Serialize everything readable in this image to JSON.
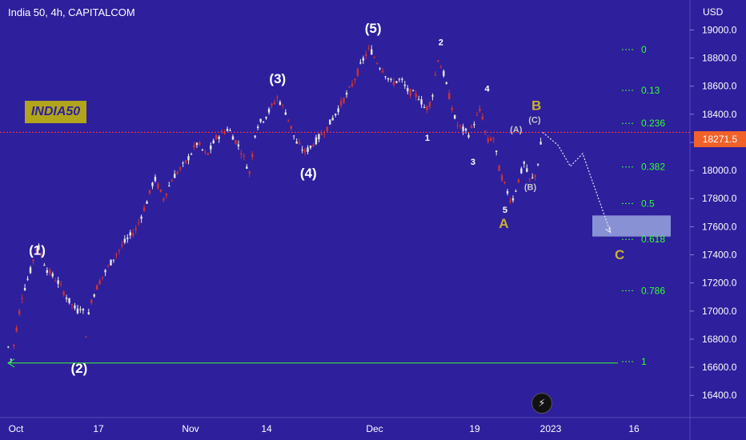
{
  "header": {
    "title": "India 50, 4h, CAPITALCOM",
    "currency": "USD"
  },
  "badge": {
    "label": "INDIA50"
  },
  "current_price": {
    "label": "18271.5",
    "value": 18271.5
  },
  "logo": {
    "icon": "lightning-icon",
    "glyph": "⚡"
  },
  "colors": {
    "background": "#2e1f9c",
    "up": "#e6e6e6",
    "down": "#cc3333",
    "fib": "#33ff33",
    "wave_white": "#ffffff",
    "wave_gold": "#c9b030",
    "wave_grey": "#c8c8c8",
    "price_line": "#ff3b3b",
    "ticker": "#f1612a",
    "target_box": "#a6b8e6"
  },
  "chart_data": {
    "type": "candlestick",
    "title": "India 50, 4h, CAPITALCOM",
    "x_ticks": [
      "Oct",
      "17",
      "Nov",
      "14",
      "Dec",
      "19",
      "2023",
      "16"
    ],
    "y_ticks": [
      19000.0,
      18800.0,
      18600.0,
      18400.0,
      18200.0,
      18000.0,
      17800.0,
      17600.0,
      17400.0,
      17200.0,
      17000.0,
      16800.0,
      16600.0,
      16400.0
    ],
    "y_tick_labels": [
      "19000.0",
      "18800.0",
      "18600.0",
      "18400.0",
      "18200.0",
      "18000.0",
      "17800.0",
      "17600.0",
      "17400.0",
      "17200.0",
      "17000.0",
      "16800.0",
      "16600.0",
      "16400.0"
    ],
    "ylim": [
      16300,
      19200
    ],
    "price_path": [
      [
        0,
        16800
      ],
      [
        0.8,
        16650
      ],
      [
        2.5,
        17100
      ],
      [
        4,
        17300
      ],
      [
        5,
        17480
      ],
      [
        6.5,
        17300
      ],
      [
        8.5,
        17200
      ],
      [
        10,
        17080
      ],
      [
        11.5,
        17000
      ],
      [
        12.3,
        17050
      ],
      [
        13,
        16800
      ],
      [
        13.5,
        17050
      ],
      [
        15,
        17200
      ],
      [
        17,
        17350
      ],
      [
        19,
        17480
      ],
      [
        21,
        17580
      ],
      [
        23,
        17800
      ],
      [
        24,
        17950
      ],
      [
        25.5,
        17800
      ],
      [
        27,
        17950
      ],
      [
        29,
        18050
      ],
      [
        31,
        18200
      ],
      [
        32.5,
        18100
      ],
      [
        34,
        18230
      ],
      [
        36,
        18300
      ],
      [
        38,
        18150
      ],
      [
        39.5,
        17980
      ],
      [
        40.5,
        18310
      ],
      [
        42,
        18380
      ],
      [
        44,
        18520
      ],
      [
        45.5,
        18400
      ],
      [
        47,
        18200
      ],
      [
        48.5,
        18130
      ],
      [
        50,
        18200
      ],
      [
        52,
        18300
      ],
      [
        54,
        18450
      ],
      [
        56,
        18600
      ],
      [
        58,
        18800
      ],
      [
        59,
        18870
      ],
      [
        60,
        18780
      ],
      [
        61,
        18720
      ],
      [
        62.5,
        18620
      ],
      [
        64,
        18650
      ],
      [
        65,
        18570
      ],
      [
        67,
        18520
      ],
      [
        68,
        18430
      ],
      [
        69,
        18500
      ],
      [
        70,
        18800
      ],
      [
        71,
        18680
      ],
      [
        72,
        18500
      ],
      [
        73,
        18330
      ],
      [
        75,
        18260
      ],
      [
        76,
        18350
      ],
      [
        77,
        18440
      ],
      [
        78,
        18200
      ],
      [
        79,
        18240
      ],
      [
        80,
        18000
      ],
      [
        81,
        17880
      ],
      [
        82,
        17770
      ],
      [
        83,
        17920
      ],
      [
        84,
        18050
      ],
      [
        85,
        17920
      ],
      [
        86,
        17980
      ],
      [
        87,
        18271.5
      ]
    ],
    "projection": [
      [
        87,
        18271.5
      ],
      [
        89.5,
        18180
      ],
      [
        91.5,
        18030
      ],
      [
        93.5,
        18120
      ],
      [
        98,
        17560
      ]
    ],
    "fib_levels": [
      {
        "label": "0",
        "price": 18860
      },
      {
        "label": "0.13",
        "price": 18570
      },
      {
        "label": "0.236",
        "price": 18335
      },
      {
        "label": "0.382",
        "price": 18025
      },
      {
        "label": "0.5",
        "price": 17765
      },
      {
        "label": "0.618",
        "price": 17510
      },
      {
        "label": "0.786",
        "price": 17145
      },
      {
        "label": "1",
        "price": 16640
      }
    ],
    "support_line": {
      "price": 16630
    },
    "target_zone": {
      "price_top": 17680,
      "price_bottom": 17530
    },
    "wave_labels": [
      {
        "text": "(1)",
        "color": "white",
        "x": 5,
        "price": 17400,
        "size": "big"
      },
      {
        "text": "(2)",
        "color": "white",
        "x": 11.8,
        "price": 16560,
        "size": "big"
      },
      {
        "text": "(3)",
        "color": "white",
        "x": 44,
        "price": 18620,
        "size": "big"
      },
      {
        "text": "(4)",
        "color": "white",
        "x": 49,
        "price": 17950,
        "size": "big"
      },
      {
        "text": "(5)",
        "color": "white",
        "x": 59.5,
        "price": 18980,
        "size": "big"
      },
      {
        "text": "2",
        "color": "white",
        "x": 70.5,
        "price": 18890,
        "size": "small"
      },
      {
        "text": "4",
        "color": "white",
        "x": 78,
        "price": 18560,
        "size": "small"
      },
      {
        "text": "1",
        "color": "white",
        "x": 68.3,
        "price": 18210,
        "size": "small"
      },
      {
        "text": "3",
        "color": "white",
        "x": 75.7,
        "price": 18040,
        "size": "small"
      },
      {
        "text": "5",
        "color": "white",
        "x": 80.9,
        "price": 17700,
        "size": "small"
      },
      {
        "text": "(A)",
        "color": "grey",
        "x": 82.7,
        "price": 18270,
        "size": "small"
      },
      {
        "text": "(B)",
        "color": "grey",
        "x": 85,
        "price": 17860,
        "size": "small"
      },
      {
        "text": "(C)",
        "color": "grey",
        "x": 85.7,
        "price": 18340,
        "size": "small"
      },
      {
        "text": "A",
        "color": "gold",
        "x": 80.7,
        "price": 17590,
        "size": "big"
      },
      {
        "text": "B",
        "color": "gold",
        "x": 86,
        "price": 18430,
        "size": "big"
      },
      {
        "text": "C",
        "color": "gold",
        "x": 99.5,
        "price": 17370,
        "size": "big"
      }
    ],
    "x_range": [
      0,
      110
    ],
    "grid": false,
    "legend": "none"
  }
}
